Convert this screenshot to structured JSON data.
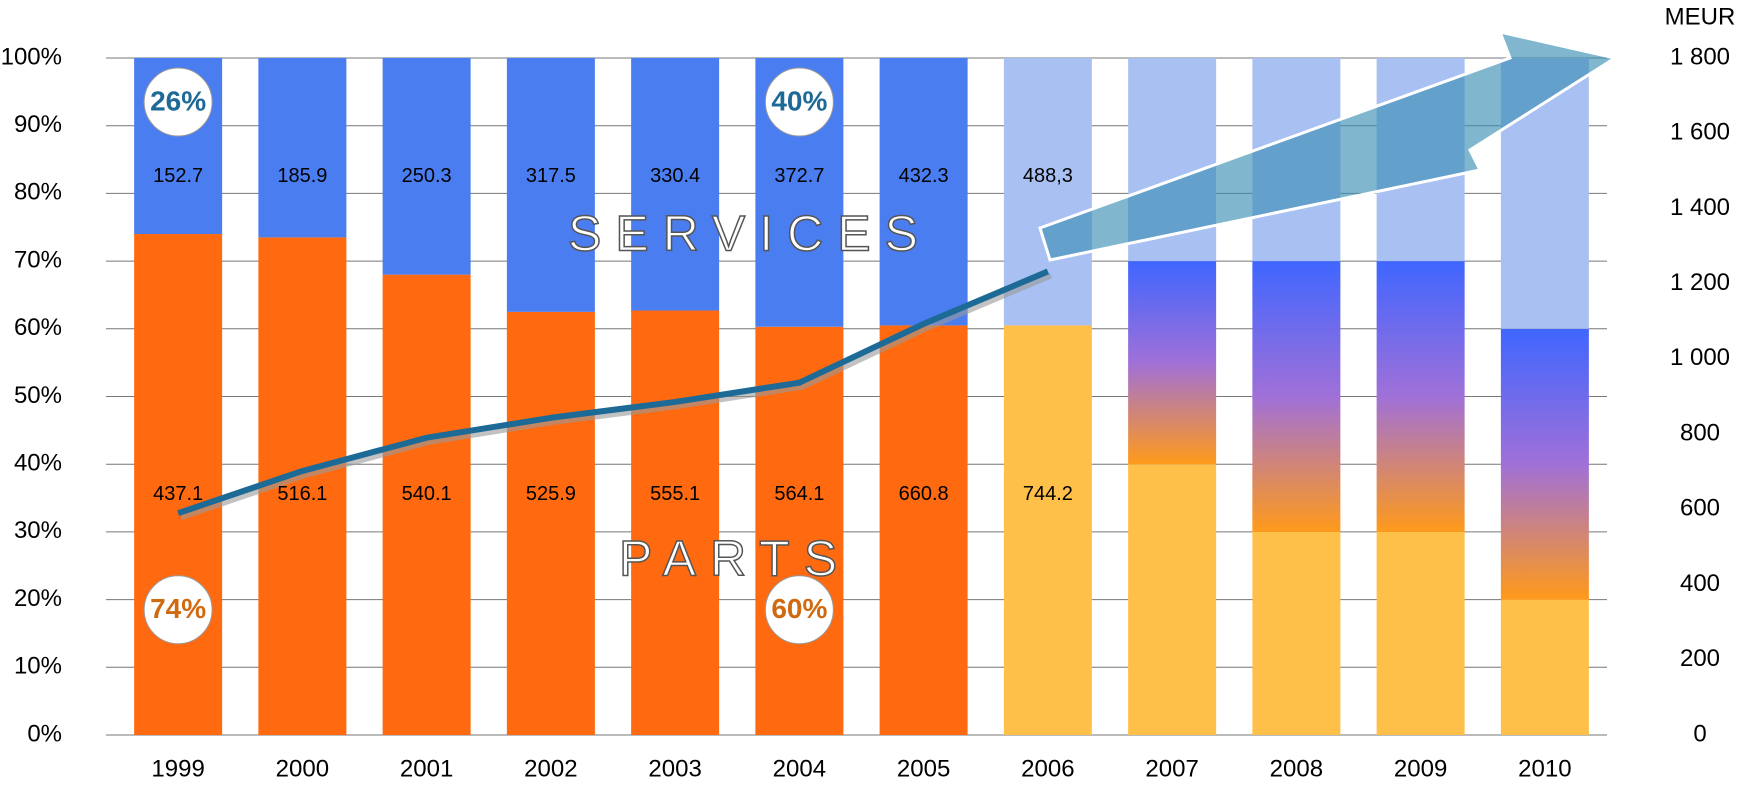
{
  "chart_data": {
    "type": "stacked_bar_line",
    "categories": [
      "1999",
      "2000",
      "2001",
      "2002",
      "2003",
      "2004",
      "2005",
      "2006",
      "2007",
      "2008",
      "2009",
      "2010"
    ],
    "forecast": [
      false,
      false,
      false,
      false,
      false,
      false,
      false,
      true,
      true,
      true,
      true,
      true
    ],
    "series": [
      {
        "name": "PARTS",
        "color": "#ff6a10",
        "forecast_color": "#ffc04a",
        "values": [
          74,
          73.5,
          68,
          62.5,
          62.7,
          60.3,
          60.5,
          60.5,
          40,
          30,
          30,
          20
        ]
      },
      {
        "name": null,
        "color": "#4a72f5",
        "axis": "y",
        "values": [
          null,
          null,
          null,
          null,
          null,
          null,
          null,
          null,
          30,
          40,
          40,
          40
        ]
      },
      {
        "name": "SERVICES",
        "color": "#4a7ef0",
        "forecast_color": "#a9c1f2",
        "values": [
          26,
          26.5,
          32,
          37.5,
          37.3,
          39.7,
          39.5,
          39.5,
          30,
          30,
          30,
          40
        ]
      }
    ],
    "parts_meur": [
      437.1,
      516.1,
      540.1,
      525.9,
      555.1,
      564.1,
      660.8,
      744.2
    ],
    "services_meur": [
      152.7,
      185.9,
      250.3,
      317.5,
      330.4,
      372.7,
      432.3,
      488.3
    ],
    "services_meur_labels": [
      "152.7",
      "185.9",
      "250.3",
      "317.5",
      "330.4",
      "372.7",
      "432.3",
      "488,3"
    ],
    "total_line": {
      "color": "#1d6a96",
      "axis": "y2",
      "values": [
        589.8,
        702,
        790.4,
        843.4,
        885.5,
        936.8,
        1093.1,
        1232.5,
        null,
        null,
        null,
        null
      ]
    },
    "annotations": [
      "26%",
      "74%",
      "40%",
      "60%"
    ],
    "y2_label": "MEUR",
    "ylim": [
      0,
      100
    ],
    "yticks": [
      {
        "value": 0,
        "label": "0%"
      },
      {
        "value": 10,
        "label": "10%"
      },
      {
        "value": 20,
        "label": "20%"
      },
      {
        "value": 30,
        "label": "30%"
      },
      {
        "value": 40,
        "label": "40%"
      },
      {
        "value": 50,
        "label": "50%"
      },
      {
        "value": 60,
        "label": "60%"
      },
      {
        "value": 70,
        "label": "70%"
      },
      {
        "value": 80,
        "label": "80%"
      },
      {
        "value": 90,
        "label": "90%"
      },
      {
        "value": 100,
        "label": "100%"
      }
    ],
    "y2lim": [
      0,
      1800
    ],
    "y2ticks": [
      0,
      200,
      400,
      600,
      800,
      {
        "value": 1000,
        "label": "1 000"
      },
      {
        "value": 1200,
        "label": "1 200"
      },
      {
        "value": 1400,
        "label": "1 400"
      },
      {
        "value": 1600,
        "label": "1 600"
      },
      {
        "value": 1800,
        "label": "1 800"
      }
    ],
    "grid": true
  }
}
